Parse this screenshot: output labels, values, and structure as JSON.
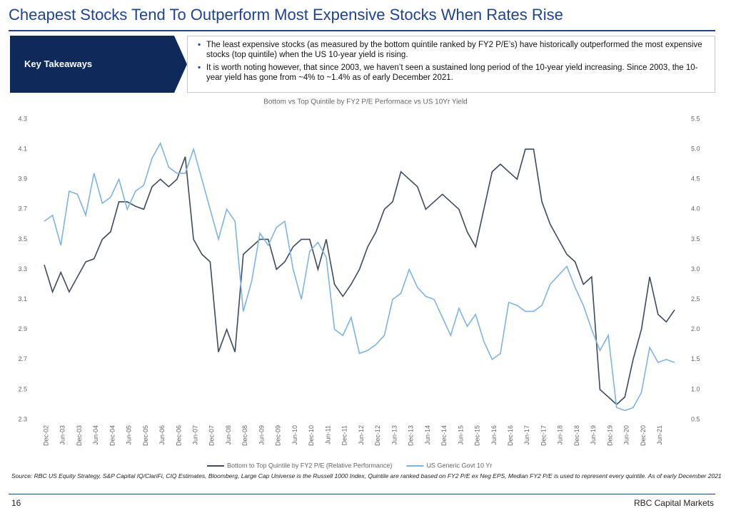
{
  "header": {
    "title": "Cheapest Stocks Tend To Outperform Most Expensive Stocks When Rates Rise"
  },
  "takeaways": {
    "label": "Key Takeaways",
    "bullets": [
      "The least expensive stocks (as measured by the bottom quintile ranked by FY2 P/E’s) have historically outperformed the most expensive stocks (top quintile) when the US 10-year yield is rising.",
      "It is worth noting however, that since 2003, we haven’t seen a sustained long period of the 10-year yield increasing. Since 2003, the 10-year yield has gone from ~4% to ~1.4% as of early December 2021."
    ]
  },
  "chart_data": {
    "type": "line",
    "title": "Bottom vs Top Quintile by FY2 P/E Performace vs US 10Yr Yield",
    "categories": [
      "Dec-02",
      null,
      "Jun-03",
      null,
      "Dec-03",
      null,
      "Jun-04",
      null,
      "Dec-04",
      null,
      "Jun-05",
      null,
      "Dec-05",
      null,
      "Jun-06",
      null,
      "Dec-06",
      null,
      "Jun-07",
      null,
      "Dec-07",
      null,
      "Jun-08",
      null,
      "Dec-08",
      null,
      "Jun-09",
      null,
      "Dec-09",
      null,
      "Jun-10",
      null,
      "Dec-10",
      null,
      "Jun-11",
      null,
      "Dec-11",
      null,
      "Jun-12",
      null,
      "Dec-12",
      null,
      "Jun-13",
      null,
      "Dec-13",
      null,
      "Jun-14",
      null,
      "Dec-14",
      null,
      "Jun-15",
      null,
      "Dec-15",
      null,
      "Jun-16",
      null,
      "Dec-16",
      null,
      "Jun-17",
      null,
      "Dec-17",
      null,
      "Jun-18",
      null,
      "Dec-18",
      null,
      "Jun-19",
      null,
      "Dec-19",
      null,
      "Jun-20",
      null,
      "Dec-20",
      null,
      "Jun-21",
      null,
      null
    ],
    "series": [
      {
        "name": "Bottom to Top Quintile by FY2 P/E (Relative Performance)",
        "color": "#3e4a5e",
        "axis": "y",
        "values": [
          3.33,
          3.15,
          3.28,
          3.15,
          3.25,
          3.35,
          3.37,
          3.5,
          3.55,
          3.75,
          3.75,
          3.72,
          3.7,
          3.85,
          3.9,
          3.85,
          3.9,
          4.05,
          3.5,
          3.4,
          3.35,
          2.75,
          2.9,
          2.75,
          3.4,
          3.45,
          3.5,
          3.5,
          3.3,
          3.35,
          3.45,
          3.5,
          3.5,
          3.3,
          3.5,
          3.2,
          3.12,
          3.2,
          3.3,
          3.45,
          3.55,
          3.7,
          3.75,
          3.95,
          3.9,
          3.85,
          3.7,
          3.75,
          3.8,
          3.75,
          3.7,
          3.55,
          3.45,
          3.7,
          3.95,
          4.0,
          3.95,
          3.9,
          4.1,
          4.1,
          3.75,
          3.6,
          3.5,
          3.4,
          3.35,
          3.2,
          3.25,
          2.5,
          2.45,
          2.4,
          2.45,
          2.7,
          2.9,
          3.25,
          3.0,
          2.95,
          3.03
        ]
      },
      {
        "name": "US Generic Govt 10 Yr",
        "color": "#7fb4e2",
        "axis": "y2",
        "values": [
          3.8,
          3.9,
          3.4,
          4.3,
          4.25,
          3.9,
          4.6,
          4.1,
          4.2,
          4.5,
          4.0,
          4.3,
          4.4,
          4.85,
          5.1,
          4.7,
          4.6,
          4.6,
          5.0,
          4.5,
          4.0,
          3.5,
          4.0,
          3.8,
          2.3,
          2.8,
          3.6,
          3.4,
          3.7,
          3.8,
          3.0,
          2.5,
          3.3,
          3.45,
          3.2,
          2.0,
          1.9,
          2.2,
          1.6,
          1.65,
          1.75,
          1.9,
          2.5,
          2.6,
          3.0,
          2.7,
          2.55,
          2.5,
          2.2,
          1.9,
          2.35,
          2.05,
          2.25,
          1.8,
          1.5,
          1.6,
          2.45,
          2.4,
          2.3,
          2.3,
          2.4,
          2.75,
          2.9,
          3.05,
          2.7,
          2.4,
          2.0,
          1.65,
          1.9,
          0.7,
          0.65,
          0.7,
          0.95,
          1.7,
          1.45,
          1.5,
          1.45
        ]
      }
    ],
    "ylim": [
      2.3,
      4.3
    ],
    "yticks": [
      2.3,
      2.5,
      2.7,
      2.9,
      3.1,
      3.3,
      3.5,
      3.7,
      3.9,
      4.1,
      4.3
    ],
    "y2lim": [
      0.5,
      5.5
    ],
    "y2ticks": [
      0.5,
      {
        "value": 1,
        "label": "1.0"
      },
      1.5,
      {
        "value": 2,
        "label": "2.0"
      },
      2.5,
      {
        "value": 3,
        "label": "3.0"
      },
      3.5,
      {
        "value": 4,
        "label": "4.0"
      },
      4.5,
      {
        "value": 5,
        "label": "5.0"
      },
      5.5
    ],
    "legend": "bottom"
  },
  "source": "Source: RBC US Equity Strategy, S&P Capital IQ/ClariFi, CIQ Estimates, Bloomberg, Large Cap Universe is the Russell 1000 Index, Quintile are ranked based on FY2 P/E ex Neg EPS, Median FY2 P/E is used to represent every quintile. As of early December 2021",
  "footer": {
    "page": "16",
    "brand": "RBC Capital Markets"
  }
}
